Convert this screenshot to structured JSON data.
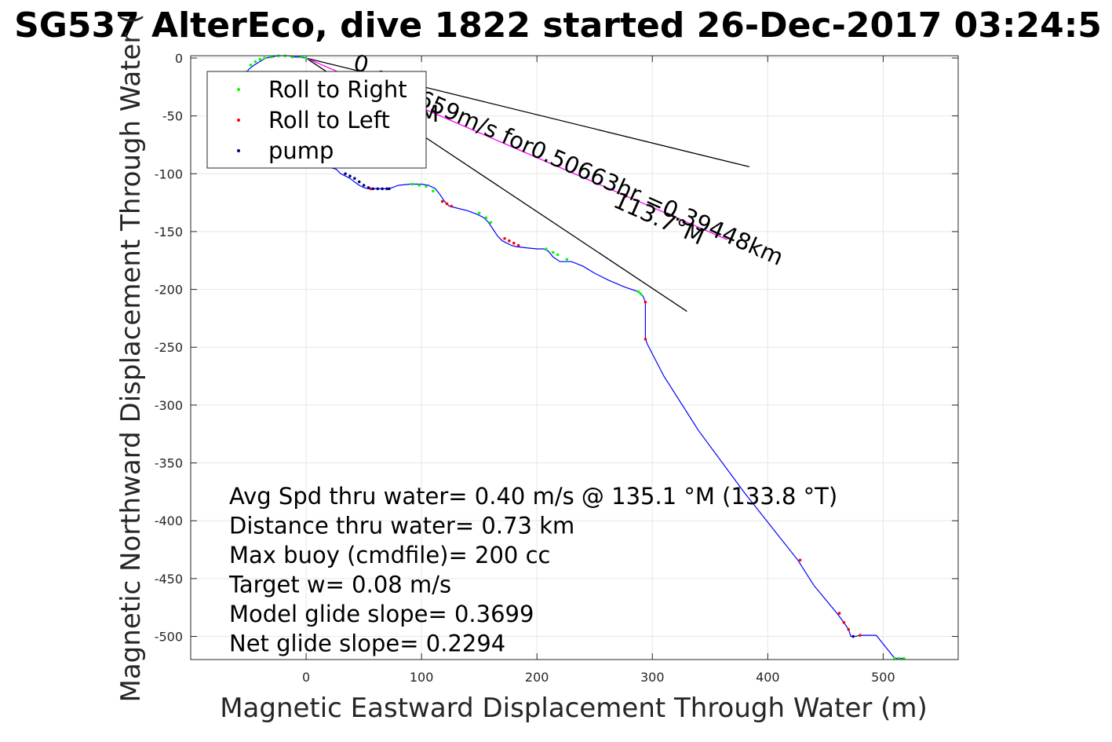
{
  "chart_data": {
    "type": "line",
    "title": "SG537 AlterEco, dive 1822 started 26-Dec-2017 03:24:5",
    "xlabel": "Magnetic Eastward Displacement Through Water (m)",
    "ylabel": "Magnetic Northward Displacement Through Water (",
    "xlim": [
      -100,
      565
    ],
    "ylim": [
      -520,
      2
    ],
    "grid": true,
    "x_ticks": [
      0,
      100,
      200,
      300,
      400,
      500
    ],
    "y_ticks": [
      0,
      -50,
      -100,
      -150,
      -200,
      -250,
      -300,
      -350,
      -400,
      -450,
      -500
    ],
    "legend": {
      "location": "top-left",
      "entries": [
        {
          "label": "Roll to Right",
          "color": "#00ff00",
          "marker": "dot"
        },
        {
          "label": "Roll to Left",
          "color": "#ff0000",
          "marker": "dot"
        },
        {
          "label": "pump",
          "color": "#000080",
          "marker": "dot"
        }
      ]
    },
    "series": [
      {
        "color": "#0000ff",
        "x": [
          0,
          -5,
          -10,
          -15,
          -20,
          -25,
          -30,
          -35,
          -40,
          -45,
          -50,
          -52,
          -50,
          -45,
          -40,
          -32,
          -24,
          -18,
          26,
          30,
          34,
          38,
          42,
          46,
          50,
          54,
          58,
          62,
          66,
          70,
          72,
          80,
          90,
          100,
          106,
          112,
          116,
          120,
          124,
          128,
          132,
          140,
          148,
          154,
          158,
          162,
          166,
          170,
          174,
          178,
          182,
          190,
          200,
          206,
          210,
          214,
          220,
          230,
          240,
          250,
          262,
          276,
          288,
          292,
          294,
          294,
          296,
          310,
          340,
          380,
          426,
          440,
          460,
          466,
          470,
          472,
          476,
          480,
          494,
          510,
          518
        ],
        "y": [
          0,
          1,
          1,
          2,
          2,
          2,
          1,
          0,
          -3,
          -6,
          -10,
          -14,
          -20,
          -30,
          -45,
          -60,
          -75,
          -85,
          -96,
          -100,
          -102,
          -104,
          -107,
          -110,
          -112,
          -113,
          -113,
          -113,
          -113,
          -113,
          -113,
          -110,
          -109,
          -109,
          -110,
          -113,
          -118,
          -124,
          -128,
          -129,
          -130,
          -132,
          -135,
          -138,
          -142,
          -148,
          -154,
          -158,
          -160,
          -162,
          -163,
          -164,
          -165,
          -165,
          -167,
          -172,
          -176,
          -176,
          -180,
          -186,
          -192,
          -198,
          -202,
          -206,
          -211,
          -243,
          -248,
          -275,
          -322,
          -376,
          -434,
          -456,
          -480,
          -488,
          -494,
          -500,
          -500,
          -499,
          -499,
          -519,
          -519
        ]
      }
    ],
    "roll_right_points": [
      [
        -52,
        -12
      ],
      [
        -48,
        -6
      ],
      [
        -44,
        -3
      ],
      [
        -40,
        -1
      ],
      [
        -36,
        0
      ],
      [
        -30,
        1
      ],
      [
        -24,
        2
      ],
      [
        -18,
        2
      ],
      [
        -12,
        1
      ],
      [
        -4,
        1
      ],
      [
        0,
        0
      ],
      [
        92,
        -109
      ],
      [
        98,
        -110
      ],
      [
        104,
        -111
      ],
      [
        110,
        -115
      ],
      [
        150,
        -134
      ],
      [
        156,
        -138
      ],
      [
        160,
        -142
      ],
      [
        208,
        -165
      ],
      [
        214,
        -168
      ],
      [
        218,
        -170
      ],
      [
        226,
        -174
      ],
      [
        288,
        -202
      ],
      [
        290,
        -204
      ],
      [
        510,
        -519
      ],
      [
        514,
        -519
      ],
      [
        518,
        -519
      ]
    ],
    "roll_left_points": [
      [
        56,
        -113
      ],
      [
        118,
        -124
      ],
      [
        122,
        -126
      ],
      [
        126,
        -128
      ],
      [
        172,
        -156
      ],
      [
        176,
        -158
      ],
      [
        180,
        -160
      ],
      [
        184,
        -162
      ],
      [
        294,
        -211
      ],
      [
        294,
        -243
      ],
      [
        428,
        -434
      ],
      [
        462,
        -480
      ],
      [
        466,
        -488
      ],
      [
        470,
        -494
      ],
      [
        480,
        -499
      ]
    ],
    "pump_points": [
      [
        34,
        -100
      ],
      [
        38,
        -102
      ],
      [
        42,
        -104
      ],
      [
        46,
        -107
      ],
      [
        50,
        -110
      ],
      [
        54,
        -112
      ],
      [
        58,
        -113
      ],
      [
        62,
        -113
      ],
      [
        66,
        -113
      ],
      [
        70,
        -113
      ],
      [
        72,
        -113
      ],
      [
        474,
        -500
      ]
    ],
    "reference_lines": [
      {
        "color": "#000000",
        "x": [
          0,
          384
        ],
        "y": [
          0,
          -94
        ]
      },
      {
        "color": "#000000",
        "x": [
          0,
          330
        ],
        "y": [
          0,
          -219
        ]
      },
      {
        "color": "#ff00ff",
        "x": [
          0,
          365
        ],
        "y": [
          0,
          -157
        ]
      }
    ],
    "annotations": [
      {
        "text": "0.",
        "x": 40,
        "y": -10,
        "rotation": 14
      },
      {
        "text": "0.21659m/s for0.50663hr =0.39448km",
        "x": 55,
        "y": -22,
        "rotation": 24
      },
      {
        "text": "113.7°M",
        "x": 265,
        "y": -128,
        "rotation": 24
      },
      {
        "text": "M",
        "x": 98,
        "y": -55,
        "rotation": 0
      }
    ],
    "info_lines": [
      "Avg Spd thru water=  0.40 m/s @ 135.1 °M (133.8 °T)",
      "Distance thru water=  0.73 km",
      "Max buoy (cmdfile)= 200 cc",
      "Target w= 0.08 m/s",
      "Model glide slope= 0.3699",
      "Net glide slope= 0.2294"
    ]
  }
}
